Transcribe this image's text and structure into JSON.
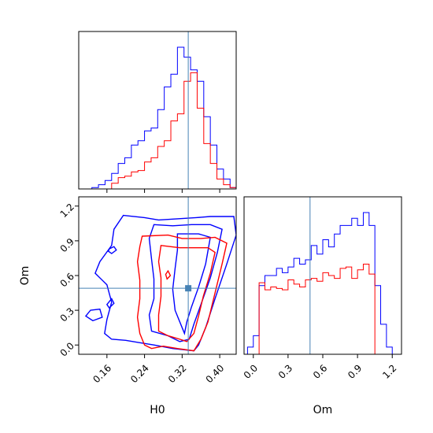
{
  "chart_data": {
    "type": "corner",
    "parameters": [
      "H0",
      "Om"
    ],
    "truth": {
      "H0": 0.333,
      "Om": 0.49
    },
    "truth_color": "#4682b4",
    "series": [
      {
        "color": "#0000ff"
      },
      {
        "color": "#ff0000"
      }
    ],
    "panels": [
      {
        "id": "hist-H0",
        "type": "step-histogram",
        "xlim": [
          0.1,
          0.435
        ],
        "xticks": [
          0.16,
          0.24,
          0.32,
          0.4
        ],
        "bin_edges": [
          0.1,
          0.114,
          0.128,
          0.142,
          0.156,
          0.17,
          0.184,
          0.198,
          0.212,
          0.226,
          0.24,
          0.254,
          0.268,
          0.282,
          0.296,
          0.31,
          0.324,
          0.338,
          0.352,
          0.366,
          0.38,
          0.394,
          0.408,
          0.422,
          0.436
        ],
        "counts": [
          [
            0.0,
            0.0,
            0.01,
            0.03,
            0.06,
            0.11,
            0.18,
            0.22,
            0.31,
            0.34,
            0.41,
            0.43,
            0.56,
            0.72,
            0.81,
            1.0,
            0.93,
            0.84,
            0.76,
            0.51,
            0.31,
            0.14,
            0.07,
            0.01
          ],
          [
            0.0,
            0.0,
            0.0,
            0.0,
            0.0,
            0.04,
            0.08,
            0.09,
            0.12,
            0.13,
            0.19,
            0.22,
            0.3,
            0.34,
            0.48,
            0.53,
            0.76,
            0.82,
            0.57,
            0.32,
            0.18,
            0.07,
            0.03,
            0.01
          ]
        ]
      },
      {
        "id": "contour-H0-Om",
        "type": "contour",
        "xlim": [
          0.1,
          0.435
        ],
        "ylim": [
          -0.08,
          1.28
        ],
        "xticks": [
          0.16,
          0.24,
          0.32,
          0.4
        ],
        "yticks": [
          0.0,
          0.3,
          0.6,
          0.9,
          1.2
        ],
        "xlabel": "H0",
        "ylabel": "Om",
        "contours": [
          [
            [
              [
                0.195,
                1.12
              ],
              [
                0.24,
                1.1
              ],
              [
                0.27,
                1.08
              ],
              [
                0.31,
                1.09
              ],
              [
                0.35,
                1.1
              ],
              [
                0.38,
                1.11
              ],
              [
                0.43,
                1.11
              ],
              [
                0.435,
                0.95
              ],
              [
                0.415,
                0.7
              ],
              [
                0.39,
                0.4
              ],
              [
                0.37,
                0.15
              ],
              [
                0.355,
                0.0
              ],
              [
                0.345,
                -0.05
              ],
              [
                0.3,
                -0.03
              ],
              [
                0.26,
                0.0
              ],
              [
                0.23,
                0.02
              ],
              [
                0.2,
                0.04
              ],
              [
                0.17,
                0.05
              ],
              [
                0.155,
                0.1
              ],
              [
                0.16,
                0.22
              ],
              [
                0.17,
                0.37
              ],
              [
                0.16,
                0.52
              ],
              [
                0.135,
                0.62
              ],
              [
                0.145,
                0.72
              ],
              [
                0.17,
                0.86
              ],
              [
                0.175,
                1.0
              ],
              [
                0.195,
                1.12
              ]
            ],
            [
              [
                0.26,
                1.04
              ],
              [
                0.3,
                1.03
              ],
              [
                0.34,
                1.04
              ],
              [
                0.38,
                1.04
              ],
              [
                0.405,
                1.0
              ],
              [
                0.395,
                0.8
              ],
              [
                0.38,
                0.58
              ],
              [
                0.36,
                0.35
              ],
              [
                0.345,
                0.18
              ],
              [
                0.335,
                0.05
              ],
              [
                0.315,
                0.03
              ],
              [
                0.29,
                0.08
              ],
              [
                0.255,
                0.12
              ],
              [
                0.25,
                0.26
              ],
              [
                0.26,
                0.4
              ],
              [
                0.26,
                0.57
              ],
              [
                0.255,
                0.74
              ],
              [
                0.25,
                0.92
              ],
              [
                0.26,
                1.04
              ]
            ],
            [
              [
                0.31,
                0.96
              ],
              [
                0.355,
                0.96
              ],
              [
                0.38,
                0.93
              ],
              [
                0.37,
                0.7
              ],
              [
                0.355,
                0.5
              ],
              [
                0.34,
                0.33
              ],
              [
                0.33,
                0.2
              ],
              [
                0.325,
                0.1
              ],
              [
                0.32,
                0.15
              ],
              [
                0.305,
                0.3
              ],
              [
                0.3,
                0.48
              ],
              [
                0.305,
                0.66
              ],
              [
                0.31,
                0.82
              ],
              [
                0.31,
                0.96
              ]
            ],
            [
              [
                0.125,
                0.3
              ],
              [
                0.145,
                0.31
              ],
              [
                0.15,
                0.24
              ],
              [
                0.13,
                0.21
              ],
              [
                0.115,
                0.25
              ],
              [
                0.125,
                0.3
              ]
            ],
            [
              [
                0.165,
                0.83
              ],
              [
                0.175,
                0.85
              ],
              [
                0.18,
                0.82
              ],
              [
                0.17,
                0.79
              ],
              [
                0.163,
                0.81
              ],
              [
                0.165,
                0.83
              ]
            ],
            [
              [
                0.16,
                0.35
              ],
              [
                0.17,
                0.4
              ],
              [
                0.175,
                0.36
              ],
              [
                0.165,
                0.32
              ],
              [
                0.16,
                0.35
              ]
            ]
          ],
          [
            [
              [
                0.235,
                0.94
              ],
              [
                0.29,
                0.95
              ],
              [
                0.32,
                0.92
              ],
              [
                0.36,
                0.92
              ],
              [
                0.39,
                0.93
              ],
              [
                0.415,
                0.88
              ],
              [
                0.405,
                0.7
              ],
              [
                0.39,
                0.45
              ],
              [
                0.375,
                0.2
              ],
              [
                0.36,
                0.05
              ],
              [
                0.345,
                -0.05
              ],
              [
                0.31,
                -0.03
              ],
              [
                0.28,
                -0.01
              ],
              [
                0.255,
                -0.03
              ],
              [
                0.24,
                0.0
              ],
              [
                0.23,
                0.1
              ],
              [
                0.225,
                0.24
              ],
              [
                0.23,
                0.4
              ],
              [
                0.23,
                0.56
              ],
              [
                0.225,
                0.72
              ],
              [
                0.23,
                0.85
              ],
              [
                0.235,
                0.94
              ]
            ],
            [
              [
                0.275,
                0.86
              ],
              [
                0.315,
                0.84
              ],
              [
                0.35,
                0.84
              ],
              [
                0.375,
                0.84
              ],
              [
                0.39,
                0.8
              ],
              [
                0.38,
                0.62
              ],
              [
                0.365,
                0.42
              ],
              [
                0.355,
                0.25
              ],
              [
                0.345,
                0.1
              ],
              [
                0.33,
                0.03
              ],
              [
                0.315,
                0.05
              ],
              [
                0.29,
                0.08
              ],
              [
                0.27,
                0.12
              ],
              [
                0.27,
                0.26
              ],
              [
                0.275,
                0.42
              ],
              [
                0.275,
                0.58
              ],
              [
                0.27,
                0.72
              ],
              [
                0.275,
                0.86
              ]
            ],
            [
              [
                0.285,
                0.61
              ],
              [
                0.29,
                0.64
              ],
              [
                0.295,
                0.6
              ],
              [
                0.288,
                0.57
              ],
              [
                0.285,
                0.61
              ]
            ]
          ]
        ]
      },
      {
        "id": "hist-Om",
        "type": "step-histogram",
        "xlim": [
          -0.08,
          1.28
        ],
        "xticks": [
          0.0,
          0.3,
          0.6,
          0.9,
          1.2
        ],
        "xlabel": "Om",
        "bin_edges": [
          -0.05,
          0.0,
          0.05,
          0.1,
          0.15,
          0.2,
          0.25,
          0.3,
          0.35,
          0.4,
          0.45,
          0.5,
          0.55,
          0.6,
          0.65,
          0.7,
          0.75,
          0.8,
          0.85,
          0.9,
          0.95,
          1.0,
          1.05,
          1.1,
          1.15,
          1.2
        ],
        "counts": [
          [
            0.05,
            0.13,
            0.48,
            0.55,
            0.55,
            0.6,
            0.57,
            0.61,
            0.67,
            0.63,
            0.66,
            0.76,
            0.7,
            0.8,
            0.75,
            0.84,
            0.9,
            0.9,
            0.95,
            0.9,
            0.99,
            0.9,
            0.48,
            0.21,
            0.05
          ],
          [
            0.0,
            0.0,
            0.5,
            0.45,
            0.47,
            0.46,
            0.45,
            0.52,
            0.49,
            0.47,
            0.52,
            0.53,
            0.51,
            0.57,
            0.55,
            0.53,
            0.6,
            0.61,
            0.53,
            0.59,
            0.63,
            0.56,
            0.0,
            0.0,
            0.0
          ]
        ]
      }
    ]
  }
}
